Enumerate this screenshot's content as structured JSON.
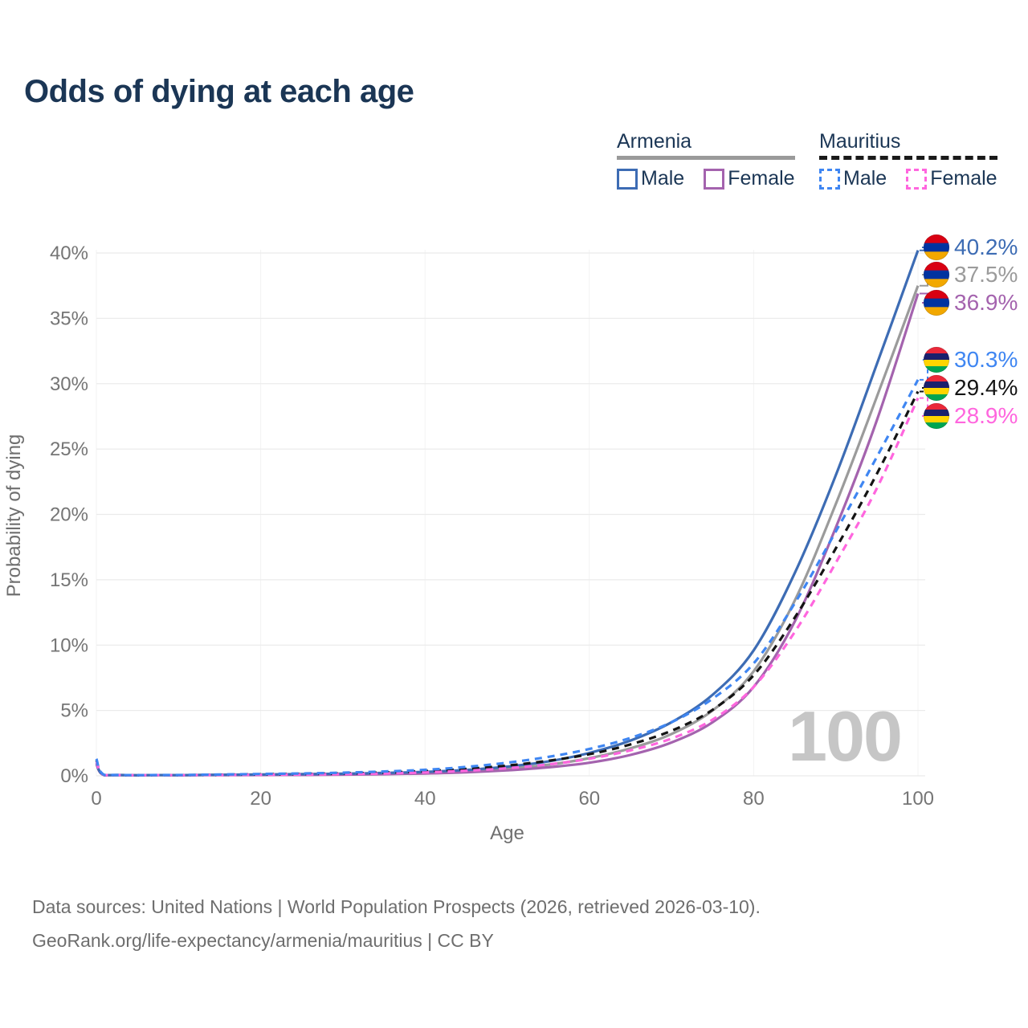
{
  "title": "Odds of dying at each age",
  "watermark_age": "100",
  "legend": {
    "groups": [
      {
        "name": "Armenia",
        "line_style": "solid",
        "underline_color": "#9a9a9a",
        "items": [
          {
            "label": "Male",
            "color": "#3d6cb4",
            "dashed": false
          },
          {
            "label": "Female",
            "color": "#a463ae",
            "dashed": false
          }
        ]
      },
      {
        "name": "Mauritius",
        "line_style": "dashed",
        "underline_color": "#1a1a1a",
        "items": [
          {
            "label": "Male",
            "color": "#3f86f2",
            "dashed": true
          },
          {
            "label": "Female",
            "color": "#ff66de",
            "dashed": true
          }
        ]
      }
    ]
  },
  "axes": {
    "y_label": "Probability of dying",
    "x_label": "Age",
    "y_ticks": [
      "0%",
      "5%",
      "10%",
      "15%",
      "20%",
      "25%",
      "30%",
      "35%",
      "40%"
    ],
    "x_ticks": [
      "0",
      "20",
      "40",
      "60",
      "80",
      "100"
    ]
  },
  "chart_data": {
    "type": "line",
    "title": "Odds of dying at each age",
    "xlabel": "Age",
    "ylabel": "Probability of dying",
    "xlim": [
      0,
      100
    ],
    "ylim_percent": [
      0,
      40
    ],
    "grid": true,
    "x": [
      0,
      1,
      5,
      10,
      15,
      20,
      25,
      30,
      35,
      40,
      45,
      50,
      55,
      60,
      65,
      70,
      75,
      80,
      85,
      90,
      95,
      100
    ],
    "series": [
      {
        "name": "Armenia Male",
        "color": "#3d6cb4",
        "dashed": false,
        "flag": "armenia",
        "end_label": "40.2%",
        "values": [
          1.0,
          0.05,
          0.04,
          0.05,
          0.08,
          0.1,
          0.13,
          0.16,
          0.22,
          0.3,
          0.45,
          0.7,
          1.1,
          1.75,
          2.7,
          4.1,
          6.2,
          9.6,
          15.5,
          23.0,
          31.5,
          40.2
        ]
      },
      {
        "name": "Armenia Both sexes",
        "color": "#9b9b9b",
        "dashed": false,
        "flag": "armenia",
        "end_label": "37.5%",
        "values": [
          0.95,
          0.05,
          0.04,
          0.05,
          0.07,
          0.08,
          0.1,
          0.13,
          0.17,
          0.24,
          0.36,
          0.55,
          0.85,
          1.35,
          2.1,
          3.2,
          5.0,
          8.0,
          13.4,
          20.8,
          29.0,
          37.5
        ]
      },
      {
        "name": "Armenia Female",
        "color": "#a463ae",
        "dashed": false,
        "flag": "armenia",
        "end_label": "36.9%",
        "values": [
          0.9,
          0.04,
          0.03,
          0.04,
          0.05,
          0.06,
          0.07,
          0.09,
          0.12,
          0.18,
          0.27,
          0.42,
          0.65,
          1.0,
          1.6,
          2.55,
          4.1,
          6.8,
          11.8,
          19.0,
          27.2,
          36.9
        ]
      },
      {
        "name": "Mauritius Male",
        "color": "#3f86f2",
        "dashed": true,
        "flag": "mauritius",
        "end_label": "30.3%",
        "values": [
          1.3,
          0.06,
          0.05,
          0.06,
          0.1,
          0.14,
          0.18,
          0.24,
          0.33,
          0.46,
          0.68,
          1.0,
          1.45,
          2.05,
          2.9,
          4.1,
          5.9,
          8.6,
          13.2,
          18.7,
          24.4,
          30.3
        ]
      },
      {
        "name": "Mauritius Both sexes",
        "color": "#141414",
        "dashed": true,
        "flag": "mauritius",
        "end_label": "29.4%",
        "values": [
          1.2,
          0.05,
          0.04,
          0.05,
          0.08,
          0.11,
          0.14,
          0.18,
          0.25,
          0.36,
          0.53,
          0.78,
          1.15,
          1.65,
          2.4,
          3.45,
          5.05,
          7.7,
          12.1,
          17.4,
          23.1,
          29.4
        ]
      },
      {
        "name": "Mauritius Female",
        "color": "#ff66de",
        "dashed": true,
        "flag": "mauritius",
        "end_label": "28.9%",
        "values": [
          1.1,
          0.05,
          0.04,
          0.04,
          0.06,
          0.08,
          0.1,
          0.13,
          0.18,
          0.26,
          0.39,
          0.58,
          0.87,
          1.3,
          1.95,
          2.85,
          4.3,
          6.8,
          11.0,
          16.3,
          22.0,
          28.9
        ]
      }
    ],
    "flag_colors": {
      "armenia": [
        "#D90012",
        "#0033A0",
        "#F2A800"
      ],
      "mauritius": [
        "#EA2839",
        "#1A206D",
        "#FFD500",
        "#00A551"
      ]
    }
  },
  "footer": {
    "line1": "Data sources: United Nations | World Population Prospects (2026, retrieved 2026-03-10).",
    "line2": "GeoRank.org/life-expectancy/armenia/mauritius | CC BY"
  }
}
